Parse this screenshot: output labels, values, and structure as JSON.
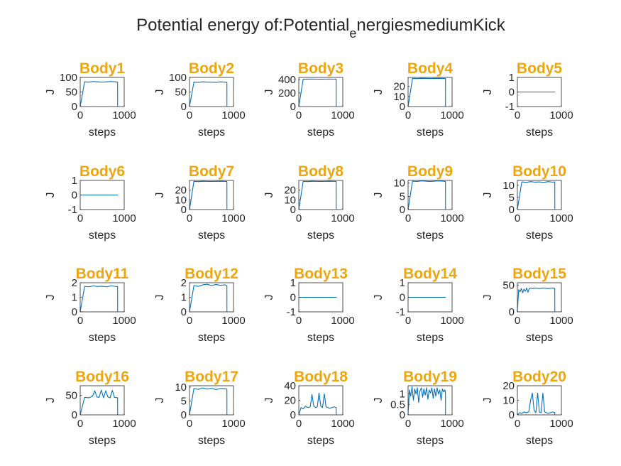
{
  "figure": {
    "title_main": "Potential energy of:Potential",
    "title_sub": "e",
    "title_tail": "nergiesmediumKick",
    "title_color": "#262626",
    "panel_title_color": "#EDA60D",
    "line_color": "#0072BD"
  },
  "chart_data": [
    {
      "type": "line",
      "title": "Body1",
      "xlabel": "steps",
      "ylabel": "J",
      "xlim": [
        0,
        1000
      ],
      "ylim": [
        0,
        100
      ],
      "xticks": [
        "0",
        "1000"
      ],
      "yticks": [
        {
          "v": 0,
          "t": "0"
        },
        {
          "v": 50,
          "t": "50"
        },
        {
          "v": 100,
          "t": "100"
        }
      ],
      "x": [
        0,
        100,
        200,
        300,
        400,
        500,
        600,
        700,
        800,
        850,
        851,
        860
      ],
      "y": [
        0,
        85,
        84,
        86,
        85,
        84,
        85,
        86,
        85,
        84,
        0,
        0
      ]
    },
    {
      "type": "line",
      "title": "Body2",
      "xlabel": "steps",
      "ylabel": "J",
      "xlim": [
        0,
        1000
      ],
      "ylim": [
        0,
        100
      ],
      "xticks": [
        "0",
        "1000"
      ],
      "yticks": [
        {
          "v": 0,
          "t": "0"
        },
        {
          "v": 50,
          "t": "50"
        },
        {
          "v": 100,
          "t": "100"
        }
      ],
      "x": [
        0,
        100,
        200,
        300,
        400,
        500,
        600,
        700,
        800,
        850,
        851,
        860
      ],
      "y": [
        0,
        84,
        83,
        85,
        84,
        84,
        83,
        85,
        84,
        83,
        0,
        0
      ]
    },
    {
      "type": "line",
      "title": "Body3",
      "xlabel": "steps",
      "ylabel": "J",
      "xlim": [
        0,
        1000
      ],
      "ylim": [
        0,
        430
      ],
      "xticks": [
        "0",
        "1000"
      ],
      "yticks": [
        {
          "v": 0,
          "t": "0"
        },
        {
          "v": 200,
          "t": "200"
        },
        {
          "v": 400,
          "t": "400"
        }
      ],
      "x": [
        0,
        100,
        200,
        300,
        400,
        500,
        600,
        700,
        800,
        850,
        851,
        860
      ],
      "y": [
        0,
        405,
        404,
        406,
        405,
        404,
        405,
        406,
        405,
        404,
        0,
        0
      ]
    },
    {
      "type": "line",
      "title": "Body4",
      "xlabel": "steps",
      "ylabel": "J",
      "xlim": [
        0,
        1000
      ],
      "ylim": [
        0,
        29
      ],
      "xticks": [
        "0",
        "1000"
      ],
      "yticks": [
        {
          "v": 0,
          "t": "0"
        },
        {
          "v": 10,
          "t": "10"
        },
        {
          "v": 20,
          "t": "20"
        }
      ],
      "x": [
        0,
        100,
        200,
        300,
        400,
        500,
        600,
        700,
        800,
        850,
        851,
        860
      ],
      "y": [
        0,
        28,
        27.8,
        28.1,
        28,
        27.9,
        28,
        28.1,
        28,
        27.9,
        0,
        0
      ]
    },
    {
      "type": "line",
      "title": "Body5",
      "xlabel": "steps",
      "ylabel": "J",
      "xlim": [
        0,
        1000
      ],
      "ylim": [
        -1,
        1
      ],
      "xticks": [
        "0",
        "1000"
      ],
      "yticks": [
        {
          "v": -1,
          "t": "-1"
        },
        {
          "v": 0,
          "t": "0"
        },
        {
          "v": 1,
          "t": "1"
        }
      ],
      "x": [
        0,
        860
      ],
      "y": [
        0,
        0
      ]
    },
    {
      "type": "line",
      "title": "Body6",
      "xlabel": "steps",
      "ylabel": "J",
      "xlim": [
        0,
        1000
      ],
      "ylim": [
        -1,
        1
      ],
      "xticks": [
        "0",
        "1000"
      ],
      "yticks": [
        {
          "v": -1,
          "t": "-1"
        },
        {
          "v": 0,
          "t": "0"
        },
        {
          "v": 1,
          "t": "1"
        }
      ],
      "x": [
        0,
        860
      ],
      "y": [
        0,
        0
      ]
    },
    {
      "type": "line",
      "title": "Body7",
      "xlabel": "steps",
      "ylabel": "J",
      "xlim": [
        0,
        1000
      ],
      "ylim": [
        0,
        30
      ],
      "xticks": [
        "0",
        "1000"
      ],
      "yticks": [
        {
          "v": 0,
          "t": "0"
        },
        {
          "v": 10,
          "t": "10"
        },
        {
          "v": 20,
          "t": "20"
        }
      ],
      "x": [
        0,
        100,
        200,
        300,
        400,
        500,
        600,
        700,
        800,
        850,
        851,
        860
      ],
      "y": [
        0,
        29,
        28.8,
        29.1,
        29,
        28.9,
        29,
        29.1,
        29,
        28.9,
        0,
        0
      ]
    },
    {
      "type": "line",
      "title": "Body8",
      "xlabel": "steps",
      "ylabel": "J",
      "xlim": [
        0,
        1000
      ],
      "ylim": [
        0,
        30
      ],
      "xticks": [
        "0",
        "1000"
      ],
      "yticks": [
        {
          "v": 0,
          "t": "0"
        },
        {
          "v": 10,
          "t": "10"
        },
        {
          "v": 20,
          "t": "20"
        }
      ],
      "x": [
        0,
        100,
        200,
        300,
        400,
        500,
        600,
        700,
        800,
        850,
        851,
        860
      ],
      "y": [
        0,
        29,
        28.8,
        29.1,
        29,
        28.9,
        29,
        29.1,
        29,
        28.9,
        0,
        0
      ]
    },
    {
      "type": "line",
      "title": "Body9",
      "xlabel": "steps",
      "ylabel": "J",
      "xlim": [
        0,
        1000
      ],
      "ylim": [
        0,
        11
      ],
      "xticks": [
        "0",
        "1000"
      ],
      "yticks": [
        {
          "v": 0,
          "t": "0"
        },
        {
          "v": 5,
          "t": "5"
        },
        {
          "v": 10,
          "t": "10"
        }
      ],
      "x": [
        0,
        100,
        200,
        300,
        400,
        500,
        600,
        700,
        800,
        850,
        851,
        860
      ],
      "y": [
        0,
        10.7,
        10.6,
        10.8,
        10.7,
        10.6,
        10.7,
        10.8,
        10.7,
        10.6,
        0,
        0
      ]
    },
    {
      "type": "line",
      "title": "Body10",
      "xlabel": "steps",
      "ylabel": "J",
      "xlim": [
        0,
        1000
      ],
      "ylim": [
        0,
        12
      ],
      "xticks": [
        "0",
        "1000"
      ],
      "yticks": [
        {
          "v": 0,
          "t": "0"
        },
        {
          "v": 5,
          "t": "5"
        },
        {
          "v": 10,
          "t": "10"
        }
      ],
      "x": [
        0,
        100,
        200,
        300,
        400,
        500,
        600,
        700,
        800,
        850,
        851,
        860
      ],
      "y": [
        0,
        11.4,
        11.2,
        11.5,
        11.3,
        11.4,
        11.2,
        11.5,
        11.3,
        11.4,
        0,
        0
      ]
    },
    {
      "type": "line",
      "title": "Body11",
      "xlabel": "steps",
      "ylabel": "J",
      "xlim": [
        0,
        1000
      ],
      "ylim": [
        0,
        2
      ],
      "xticks": [
        "0",
        "1000"
      ],
      "yticks": [
        {
          "v": 0,
          "t": "0"
        },
        {
          "v": 1,
          "t": "1"
        },
        {
          "v": 2,
          "t": "2"
        }
      ],
      "x": [
        0,
        100,
        200,
        300,
        400,
        500,
        600,
        700,
        800,
        850,
        851,
        860
      ],
      "y": [
        0,
        1.75,
        1.72,
        1.78,
        1.74,
        1.76,
        1.72,
        1.78,
        1.75,
        1.73,
        0,
        0
      ]
    },
    {
      "type": "line",
      "title": "Body12",
      "xlabel": "steps",
      "ylabel": "J",
      "xlim": [
        0,
        1000
      ],
      "ylim": [
        0,
        2
      ],
      "xticks": [
        "0",
        "1000"
      ],
      "yticks": [
        {
          "v": 0,
          "t": "0"
        },
        {
          "v": 1,
          "t": "1"
        },
        {
          "v": 2,
          "t": "2"
        }
      ],
      "x": [
        0,
        100,
        200,
        300,
        400,
        500,
        600,
        700,
        800,
        850,
        851,
        860
      ],
      "y": [
        0,
        1.8,
        1.75,
        1.85,
        1.9,
        1.8,
        1.88,
        1.82,
        1.86,
        1.8,
        0,
        0
      ]
    },
    {
      "type": "line",
      "title": "Body13",
      "xlabel": "steps",
      "ylabel": "J",
      "xlim": [
        0,
        1000
      ],
      "ylim": [
        -1,
        1
      ],
      "xticks": [
        "0",
        "1000"
      ],
      "yticks": [
        {
          "v": -1,
          "t": "-1"
        },
        {
          "v": 0,
          "t": "0"
        },
        {
          "v": 1,
          "t": "1"
        }
      ],
      "x": [
        0,
        860
      ],
      "y": [
        0,
        0
      ]
    },
    {
      "type": "line",
      "title": "Body14",
      "xlabel": "steps",
      "ylabel": "J",
      "xlim": [
        0,
        1000
      ],
      "ylim": [
        -1,
        1
      ],
      "xticks": [
        "0",
        "1000"
      ],
      "yticks": [
        {
          "v": -1,
          "t": "-1"
        },
        {
          "v": 0,
          "t": "0"
        },
        {
          "v": 1,
          "t": "1"
        }
      ],
      "x": [
        0,
        860
      ],
      "y": [
        0,
        0
      ]
    },
    {
      "type": "line",
      "title": "Body15",
      "xlabel": "steps",
      "ylabel": "J",
      "xlim": [
        0,
        1000
      ],
      "ylim": [
        0,
        55
      ],
      "xticks": [
        "0",
        "1000"
      ],
      "yticks": [
        {
          "v": 0,
          "t": "0"
        },
        {
          "v": 50,
          "t": "50"
        }
      ],
      "x": [
        0,
        30,
        60,
        90,
        120,
        150,
        180,
        210,
        240,
        270,
        300,
        350,
        400,
        500,
        600,
        700,
        800,
        850,
        851,
        860
      ],
      "y": [
        0,
        42,
        38,
        44,
        36,
        43,
        39,
        45,
        37,
        44,
        45,
        44,
        45,
        44,
        45,
        44,
        45,
        44,
        0,
        0
      ]
    },
    {
      "type": "line",
      "title": "Body16",
      "xlabel": "steps",
      "ylabel": "J",
      "xlim": [
        0,
        1000
      ],
      "ylim": [
        0,
        75
      ],
      "xticks": [
        "0",
        "1000"
      ],
      "yticks": [
        {
          "v": 0,
          "t": "0"
        },
        {
          "v": 50,
          "t": "50"
        }
      ],
      "x": [
        0,
        100,
        200,
        280,
        330,
        380,
        430,
        480,
        530,
        580,
        630,
        680,
        730,
        780,
        850,
        851,
        860
      ],
      "y": [
        0,
        45,
        44,
        48,
        62,
        46,
        45,
        64,
        44,
        62,
        46,
        44,
        63,
        45,
        44,
        0,
        0
      ]
    },
    {
      "type": "line",
      "title": "Body17",
      "xlabel": "steps",
      "ylabel": "J",
      "xlim": [
        0,
        1000
      ],
      "ylim": [
        0,
        10.5
      ],
      "xticks": [
        "0",
        "1000"
      ],
      "yticks": [
        {
          "v": 0,
          "t": "0"
        },
        {
          "v": 5,
          "t": "5"
        },
        {
          "v": 10,
          "t": "10"
        }
      ],
      "x": [
        0,
        100,
        200,
        300,
        400,
        500,
        600,
        700,
        800,
        850,
        851,
        860
      ],
      "y": [
        0,
        9.5,
        9.2,
        9.7,
        9.3,
        9.6,
        9.1,
        9.5,
        9.4,
        9.3,
        0,
        0
      ]
    },
    {
      "type": "line",
      "title": "Body18",
      "xlabel": "steps",
      "ylabel": "J",
      "xlim": [
        0,
        1000
      ],
      "ylim": [
        0,
        40
      ],
      "xticks": [
        "0",
        "1000"
      ],
      "yticks": [
        {
          "v": 0,
          "t": "0"
        },
        {
          "v": 20,
          "t": "20"
        },
        {
          "v": 40,
          "t": "40"
        }
      ],
      "x": [
        0,
        50,
        100,
        150,
        200,
        260,
        300,
        340,
        380,
        420,
        460,
        500,
        540,
        580,
        620,
        660,
        700,
        750,
        800,
        850,
        851,
        860
      ],
      "y": [
        0,
        10,
        8,
        12,
        10,
        11,
        28,
        12,
        10,
        11,
        30,
        12,
        10,
        29,
        11,
        10,
        9,
        10,
        11,
        10,
        0,
        0
      ]
    },
    {
      "type": "line",
      "title": "Body19",
      "xlabel": "steps",
      "ylabel": "J",
      "xlim": [
        0,
        1000
      ],
      "ylim": [
        0,
        1.4
      ],
      "xticks": [
        "0",
        "1000"
      ],
      "yticks": [
        {
          "v": 0,
          "t": "0"
        },
        {
          "v": 0.5,
          "t": "0.5"
        },
        {
          "v": 1,
          "t": "1"
        }
      ],
      "x": [
        0,
        30,
        60,
        90,
        120,
        150,
        180,
        210,
        240,
        270,
        300,
        330,
        360,
        390,
        420,
        450,
        480,
        510,
        540,
        570,
        600,
        630,
        660,
        690,
        720,
        750,
        780,
        810,
        840,
        850,
        851,
        860
      ],
      "y": [
        0,
        1.2,
        0.9,
        1.35,
        0.7,
        1.25,
        1.0,
        1.3,
        0.6,
        1.15,
        1.3,
        0.85,
        1.25,
        0.95,
        1.3,
        0.75,
        1.2,
        1.05,
        1.3,
        0.8,
        1.25,
        0.9,
        1.3,
        1.0,
        1.2,
        0.7,
        1.25,
        1.1,
        1.2,
        1.0,
        0,
        0
      ]
    },
    {
      "type": "line",
      "title": "Body20",
      "xlabel": "steps",
      "ylabel": "J",
      "xlim": [
        0,
        1000
      ],
      "ylim": [
        0,
        20
      ],
      "xticks": [
        "0",
        "1000"
      ],
      "yticks": [
        {
          "v": 0,
          "t": "0"
        },
        {
          "v": 10,
          "t": "10"
        },
        {
          "v": 20,
          "t": "20"
        }
      ],
      "x": [
        0,
        50,
        100,
        150,
        200,
        260,
        300,
        340,
        380,
        420,
        460,
        500,
        540,
        580,
        620,
        660,
        700,
        750,
        800,
        850,
        851,
        860
      ],
      "y": [
        0,
        1.5,
        1,
        2,
        1.5,
        2,
        10,
        15,
        3,
        1.5,
        15,
        2,
        1.5,
        15,
        2,
        1.5,
        1,
        1.5,
        2,
        1.5,
        0,
        0
      ]
    }
  ]
}
